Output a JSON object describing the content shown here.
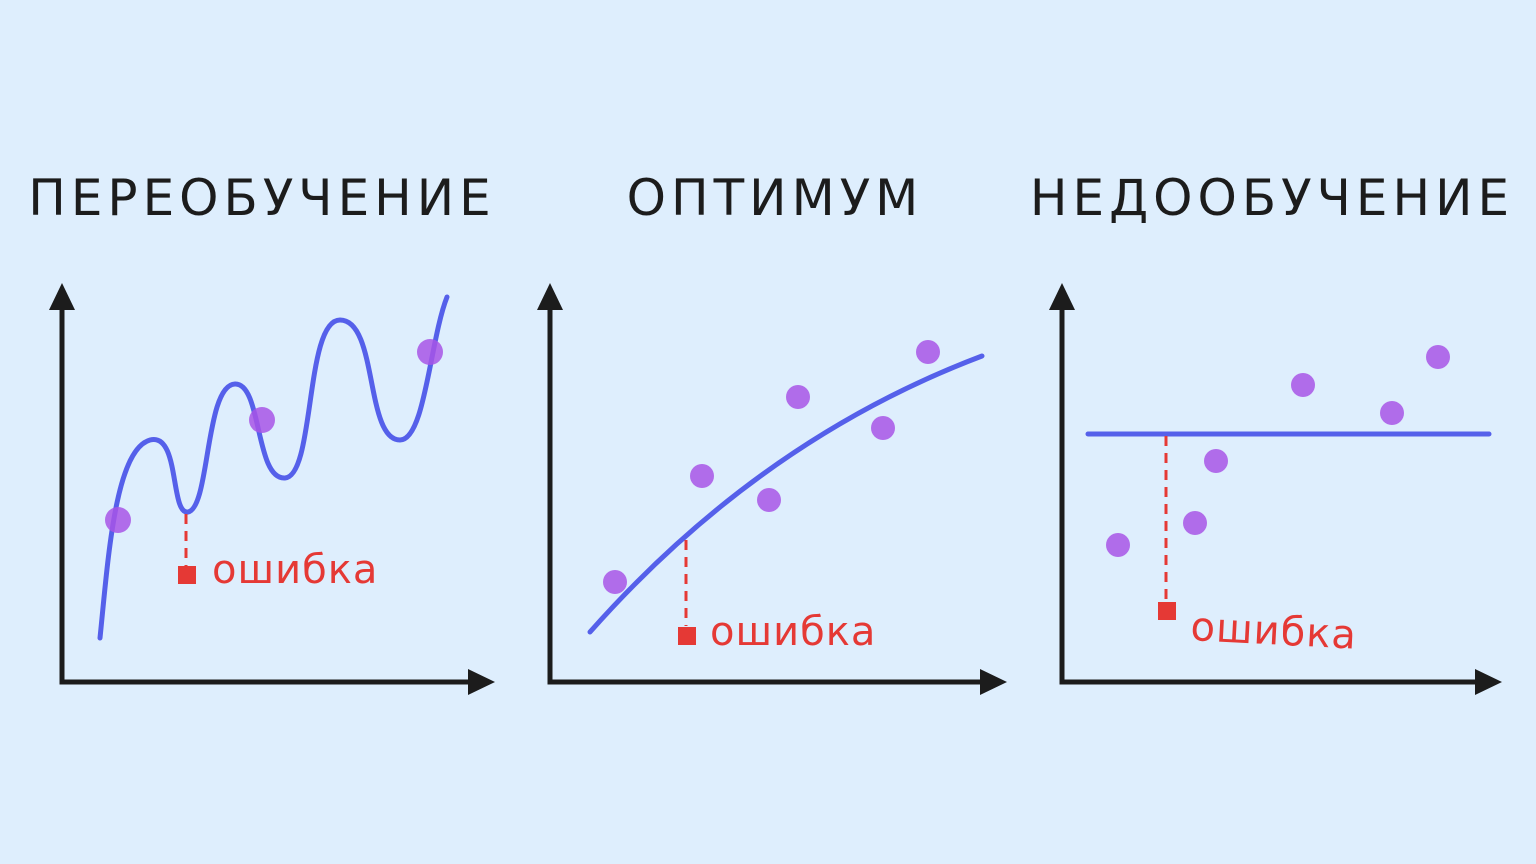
{
  "panels": [
    {
      "title": "ПЕРЕОБУЧЕНИЕ",
      "error_label": "ошибка"
    },
    {
      "title": "ОПТИМУМ",
      "error_label": "ошибка"
    },
    {
      "title": "НЕДООБУЧЕНИЕ",
      "error_label": "ошибка"
    }
  ]
}
